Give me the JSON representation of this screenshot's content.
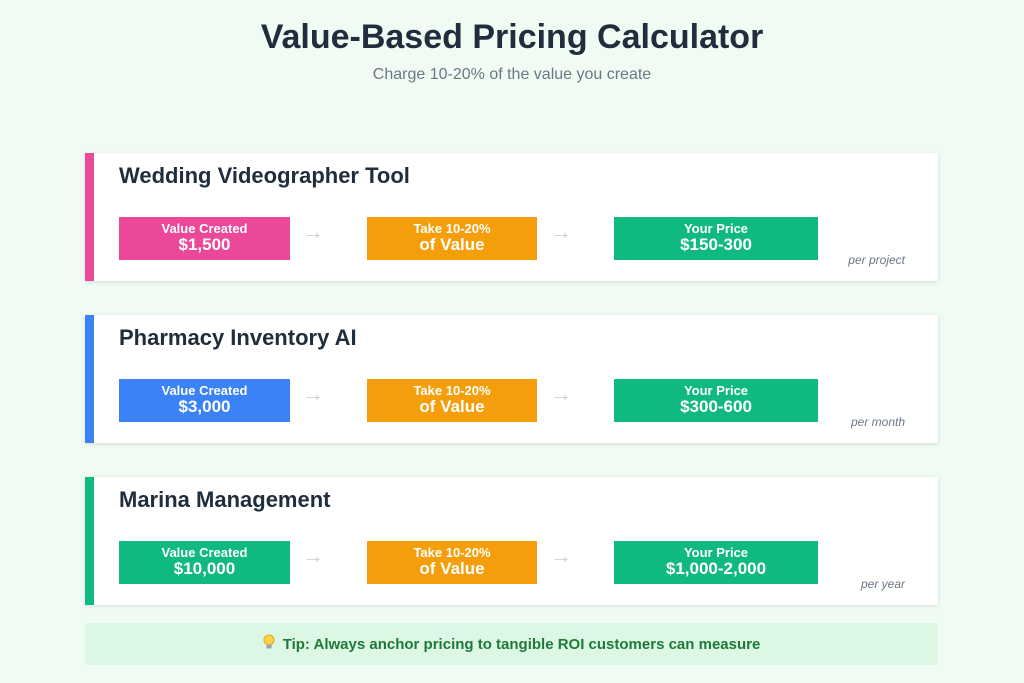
{
  "header": {
    "title": "Value-Based Pricing Calculator",
    "subtitle": "Charge 10-20% of the value you create"
  },
  "colors": {
    "pink": "#ec4899",
    "blue": "#3b82f6",
    "green": "#10b981",
    "orange": "#f59e0b"
  },
  "cards": [
    {
      "title": "Wedding Videographer Tool",
      "value_label": "Value Created",
      "value": "$1,500",
      "take_label": "Take 10-20%",
      "take_sub": "of Value",
      "price_label": "Your Price",
      "price": "$150-300",
      "period": "per project"
    },
    {
      "title": "Pharmacy Inventory AI",
      "value_label": "Value Created",
      "value": "$3,000",
      "take_label": "Take 10-20%",
      "take_sub": "of Value",
      "price_label": "Your Price",
      "price": "$300-600",
      "period": "per month"
    },
    {
      "title": "Marina Management",
      "value_label": "Value Created",
      "value": "$10,000",
      "take_label": "Take 10-20%",
      "take_sub": "of Value",
      "price_label": "Your Price",
      "price": "$1,000-2,000",
      "period": "per year"
    }
  ],
  "arrow_glyph": "→",
  "tip": {
    "icon": "lightbulb-icon",
    "text": "Tip: Always anchor pricing to tangible ROI customers can measure"
  }
}
